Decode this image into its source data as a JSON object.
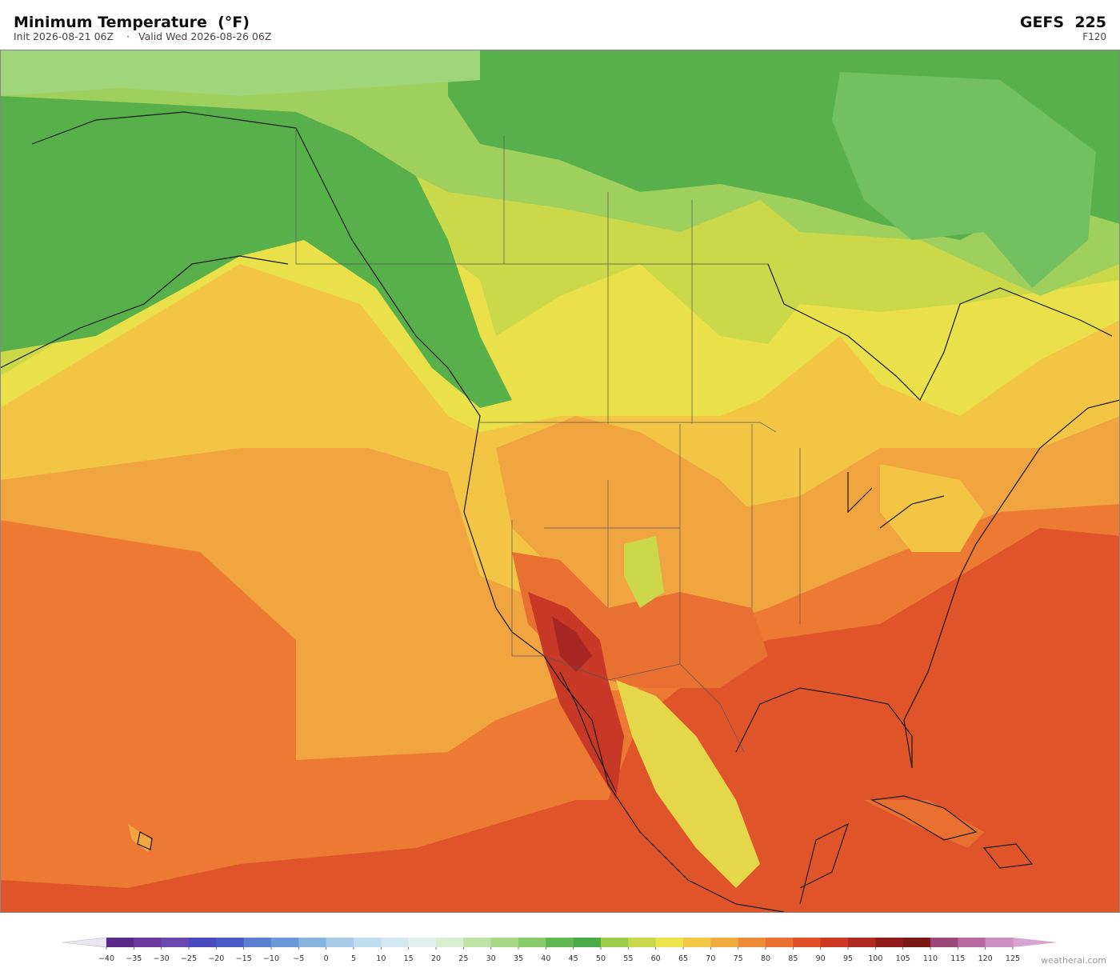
{
  "header": {
    "title": "Minimum Temperature  (°F)",
    "init": "Init 2026-08-21 06Z",
    "separator": "·",
    "valid": "Valid Wed 2026-08-26 06Z",
    "model": "GEFS  225",
    "forecast_hour": "F120"
  },
  "colorbar": {
    "ticks": [
      {
        "value": -40,
        "label": "−40"
      },
      {
        "value": -35,
        "label": "−35"
      },
      {
        "value": -30,
        "label": "−30"
      },
      {
        "value": -25,
        "label": "−25"
      },
      {
        "value": -20,
        "label": "−20"
      },
      {
        "value": -15,
        "label": "−15"
      },
      {
        "value": -10,
        "label": "−10"
      },
      {
        "value": -5,
        "label": "−5"
      },
      0,
      5,
      10,
      15,
      20,
      25,
      30,
      35,
      40,
      45,
      50,
      55,
      60,
      65,
      70,
      75,
      80,
      85,
      90,
      95,
      100,
      105,
      110,
      115,
      120,
      125
    ],
    "colors": [
      "#5a2a8a",
      "#6a3a9e",
      "#6a4aae",
      "#4a4ac0",
      "#4a5cc8",
      "#5a80d0",
      "#6a98d8",
      "#88b4e0",
      "#a8cce8",
      "#c0dcef",
      "#d4e8f2",
      "#e4f0ee",
      "#d8eed0",
      "#bfe2a8",
      "#a6d888",
      "#88cc6a",
      "#62b850",
      "#4aac48",
      "#9ccc4a",
      "#c8d84a",
      "#ece44a",
      "#f2c846",
      "#f0ac40",
      "#ec8c38",
      "#e87030",
      "#e05028",
      "#cc3a24",
      "#b02a22",
      "#901c1c",
      "#7a1818",
      "#9a4878",
      "#b86aa0",
      "#cc90c0"
    ],
    "under_color": "#ece6f2",
    "over_color": "#d8a4d4"
  },
  "footer": {
    "watermark": "weatherai.com"
  }
}
